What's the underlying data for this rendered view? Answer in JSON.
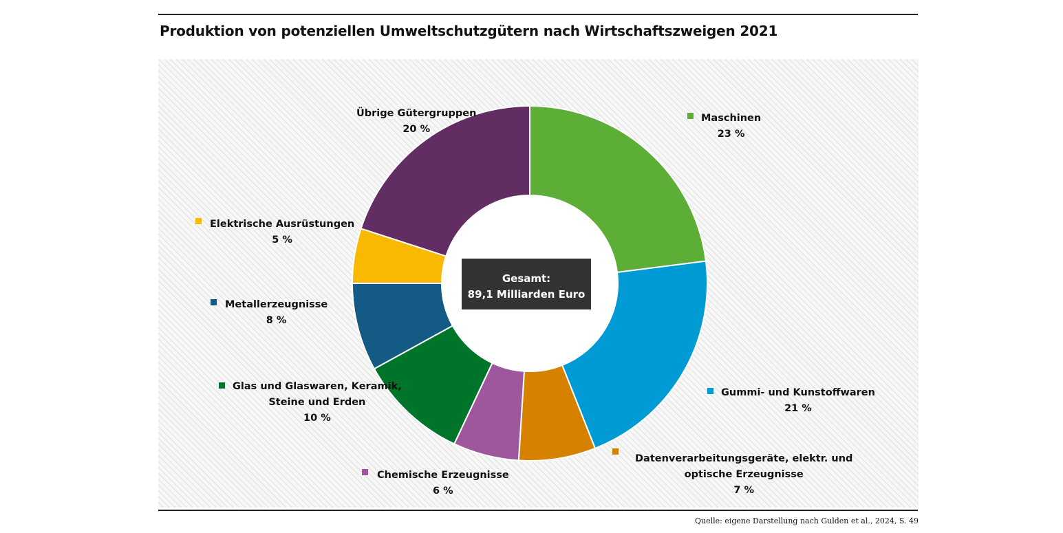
{
  "title": "Produktion von potenziellen Umweltschutzgütern nach Wirtschaftszweigen 2021",
  "source": "Quelle: eigene Darstellung nach Gulden et al., 2024, S. 49",
  "center_label": {
    "line1": "Gesamt:",
    "line2": "89,1 Milliarden Euro"
  },
  "chart_data": {
    "type": "pie",
    "variant": "donut",
    "total_label": "89,1 Milliarden Euro",
    "slices": [
      {
        "name": "Maschinen",
        "lines": [
          "Maschinen"
        ],
        "value": 23,
        "value_label": "23 %",
        "color": "#5dae36"
      },
      {
        "name": "Gummi- und Kunstoffwaren",
        "lines": [
          "Gummi- und Kunstoffwaren"
        ],
        "value": 21,
        "value_label": "21 %",
        "color": "#009bd5"
      },
      {
        "name": "Datenverarbeitungsgeräte, elektr. und optische Erzeugnisse",
        "lines": [
          "Datenverarbeitungsgeräte, elektr. und",
          "optische Erzeugnisse"
        ],
        "value": 7,
        "value_label": "7 %",
        "color": "#d68200"
      },
      {
        "name": "Chemische Erzeugnisse",
        "lines": [
          "Chemische Erzeugnisse"
        ],
        "value": 6,
        "value_label": "6 %",
        "color": "#9e569c"
      },
      {
        "name": "Glas und Glaswaren, Keramik, Steine und Erden",
        "lines": [
          "Glas und Glaswaren, Keramik,",
          "Steine und Erden"
        ],
        "value": 10,
        "value_label": "10 %",
        "color": "#007428"
      },
      {
        "name": "Metallerzeugnisse",
        "lines": [
          "Metallerzeugnisse"
        ],
        "value": 8,
        "value_label": "8 %",
        "color": "#135a85"
      },
      {
        "name": "Elektrische Ausrüstungen",
        "lines": [
          "Elektrische Ausrüstungen"
        ],
        "value": 5,
        "value_label": "5 %",
        "color": "#f9b900"
      },
      {
        "name": "Übrige Gütergruppen",
        "lines": [
          "Übrige Gütergruppen"
        ],
        "value": 20,
        "value_label": "20 %",
        "color": "#622d62"
      }
    ],
    "start_angle_deg": 0,
    "direction": "clockwise",
    "background": "diagonal-hatch",
    "center_box_color": "#333333"
  }
}
